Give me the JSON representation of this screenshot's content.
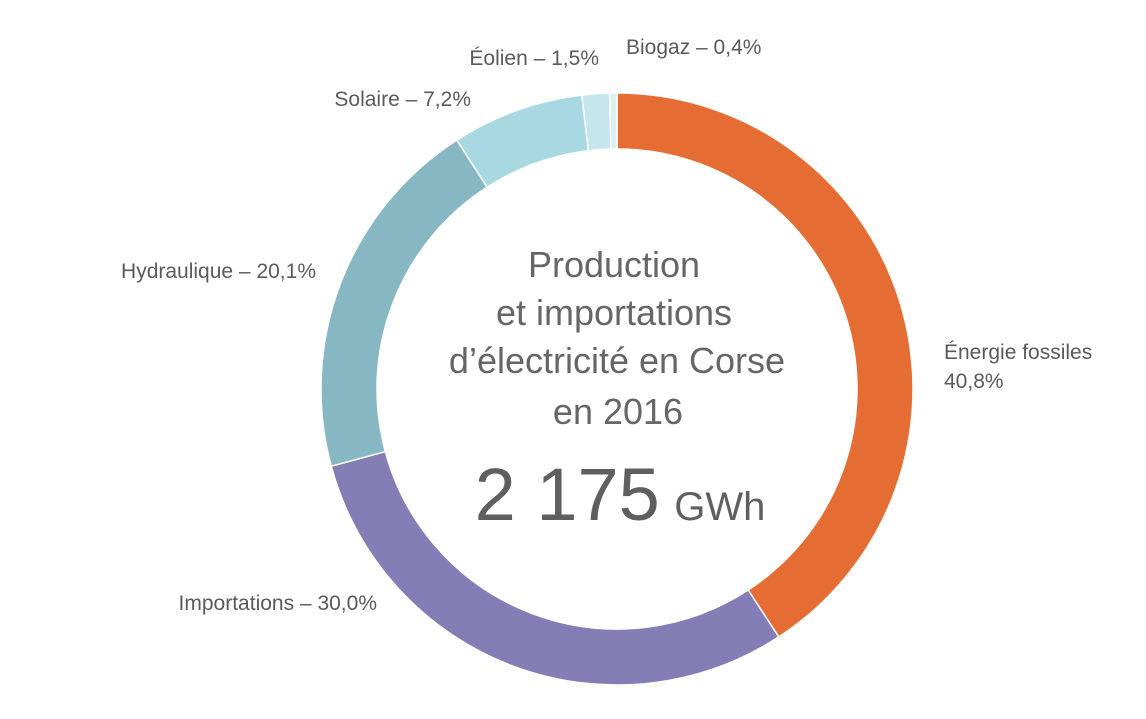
{
  "chart_data": {
    "type": "pie",
    "title_lines": [
      "Production",
      "et importations",
      "d’électricité en Corse",
      "en 2016"
    ],
    "total": {
      "value": "2 175",
      "unit": "GWh"
    },
    "slices": [
      {
        "name": "Énergie fossiles",
        "percent_label": "40,8%",
        "value": 40.8,
        "color": "#e56d33"
      },
      {
        "name": "Importations",
        "percent_label": "30,0%",
        "value": 30.0,
        "color": "#847db6"
      },
      {
        "name": "Hydraulique",
        "percent_label": "20,1%",
        "value": 20.1,
        "color": "#86b7c2"
      },
      {
        "name": "Solaire",
        "percent_label": "7,2%",
        "value": 7.2,
        "color": "#a8d9e3"
      },
      {
        "name": "Éolien",
        "percent_label": "1,5%",
        "value": 1.5,
        "color": "#c6e5ec"
      },
      {
        "name": "Biogaz",
        "percent_label": "0,4%",
        "value": 0.4,
        "color": "#daf0f3"
      }
    ],
    "label_separator": " – "
  }
}
